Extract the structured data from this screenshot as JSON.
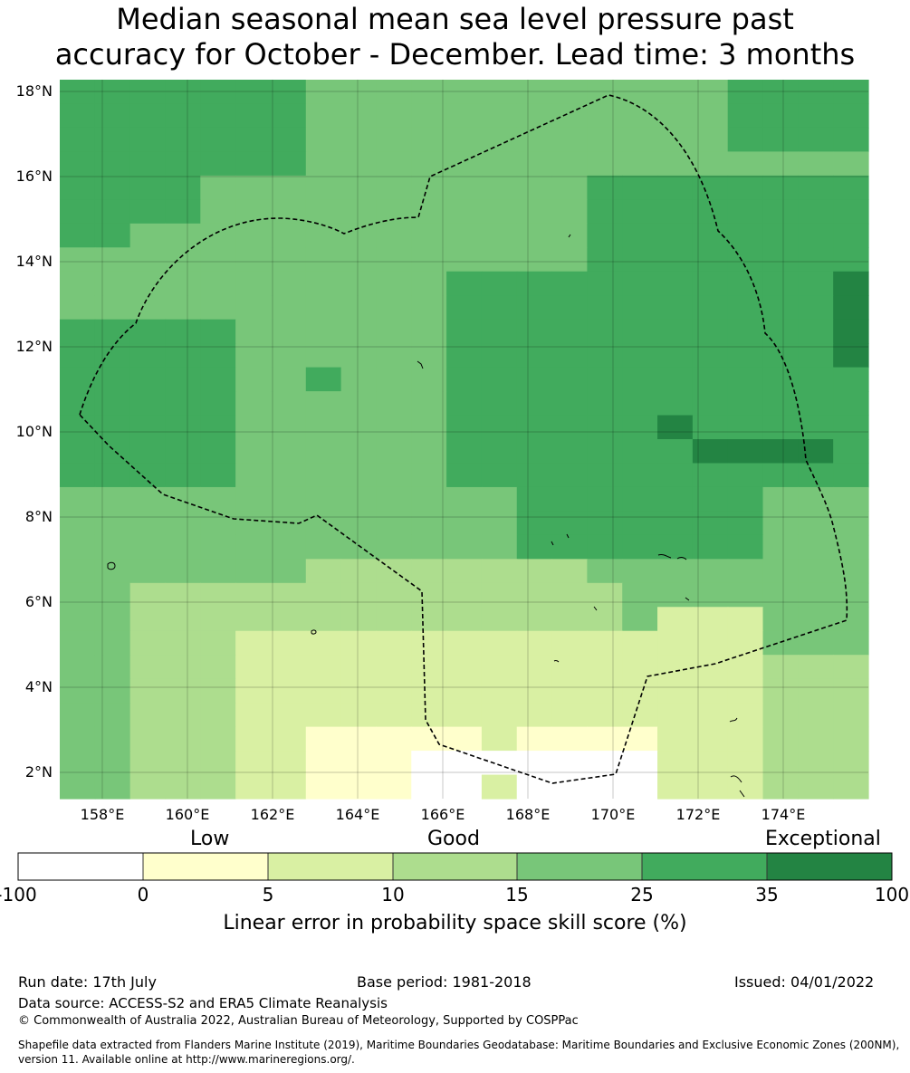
{
  "title_line1": "Median seasonal mean sea level pressure past",
  "title_line2": "accuracy for October - December. Lead time: 3 months",
  "map": {
    "lat_ticks": [
      "18°N",
      "16°N",
      "14°N",
      "12°N",
      "10°N",
      "8°N",
      "6°N",
      "4°N",
      "2°N"
    ],
    "lon_ticks": [
      "158°E",
      "160°E",
      "162°E",
      "164°E",
      "166°E",
      "168°E",
      "170°E",
      "172°E",
      "174°E"
    ],
    "boundary": "dashed EEZ outline",
    "grid": true
  },
  "legend": {
    "categories": [
      "Low",
      "Good",
      "Exceptional"
    ],
    "tick_labels": [
      "-100",
      "0",
      "5",
      "10",
      "15",
      "25",
      "35",
      "100"
    ],
    "colors": [
      "#ffffff",
      "#ffffcc",
      "#d9f0a3",
      "#addd8e",
      "#78c679",
      "#41ab5d",
      "#238443"
    ],
    "label": "Linear error in probability space skill score (%)"
  },
  "footer": {
    "run_date": "Run date: 17th July",
    "base_period": "Base period: 1981-2018",
    "issued": "Issued: 04/01/2022",
    "data_source": "Data source: ACCESS-S2 and ERA5 Climate Reanalysis",
    "copyright": "© Commonwealth of Australia 2022, Australian Bureau of Meteorology, Supported by COSPPac",
    "shapefile": "Shapefile data extracted from Flanders Marine Institute (2019), Maritime Boundaries Geodatabase: Maritime Boundaries and Exclusive Economic Zones (200NM), version 11. Available online at http://www.marineregions.org/."
  }
}
